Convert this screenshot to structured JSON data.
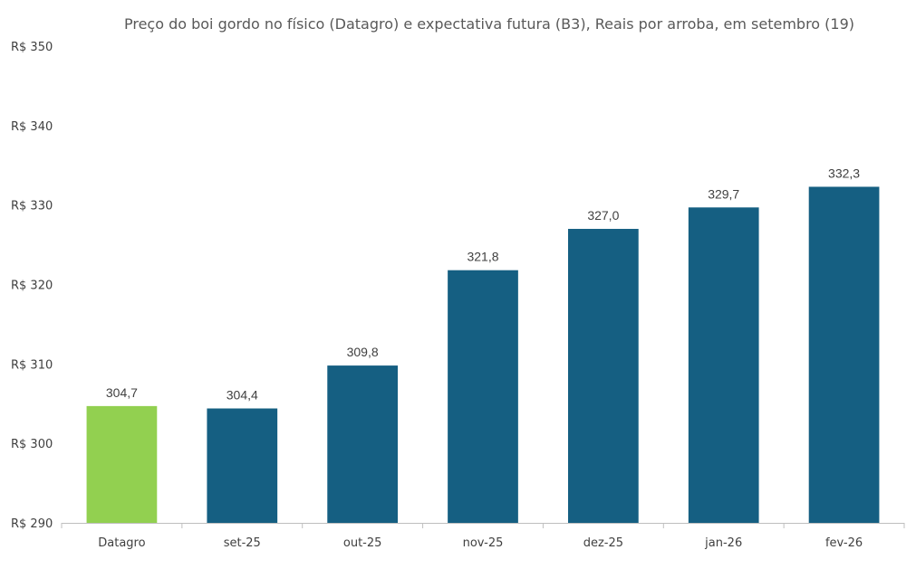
{
  "chart_data": {
    "type": "bar",
    "title": "Preço do boi gordo no físico (Datagro)  e expectativa futura (B3), Reais por arroba, em setembro (19)",
    "xlabel": "",
    "ylabel": "",
    "categories": [
      "Datagro",
      "set-25",
      "out-25",
      "nov-25",
      "dez-25",
      "jan-26",
      "fev-26"
    ],
    "values": [
      304.7,
      304.4,
      309.8,
      321.8,
      327.0,
      329.7,
      332.3
    ],
    "value_labels": [
      "304,7",
      "304,4",
      "309,8",
      "321,8",
      "327,0",
      "329,7",
      "332,3"
    ],
    "ylim": [
      290,
      350
    ],
    "yticks": [
      290,
      300,
      310,
      320,
      330,
      340,
      350
    ],
    "ytick_labels": [
      "R$ 290",
      "R$ 300",
      "R$ 310",
      "R$ 320",
      "R$ 330",
      "R$ 340",
      "R$ 350"
    ],
    "grid": false,
    "legend": "none",
    "colors": {
      "highlight": "#92d050",
      "series": "#155f82",
      "axis": "#bfbfbf"
    }
  }
}
